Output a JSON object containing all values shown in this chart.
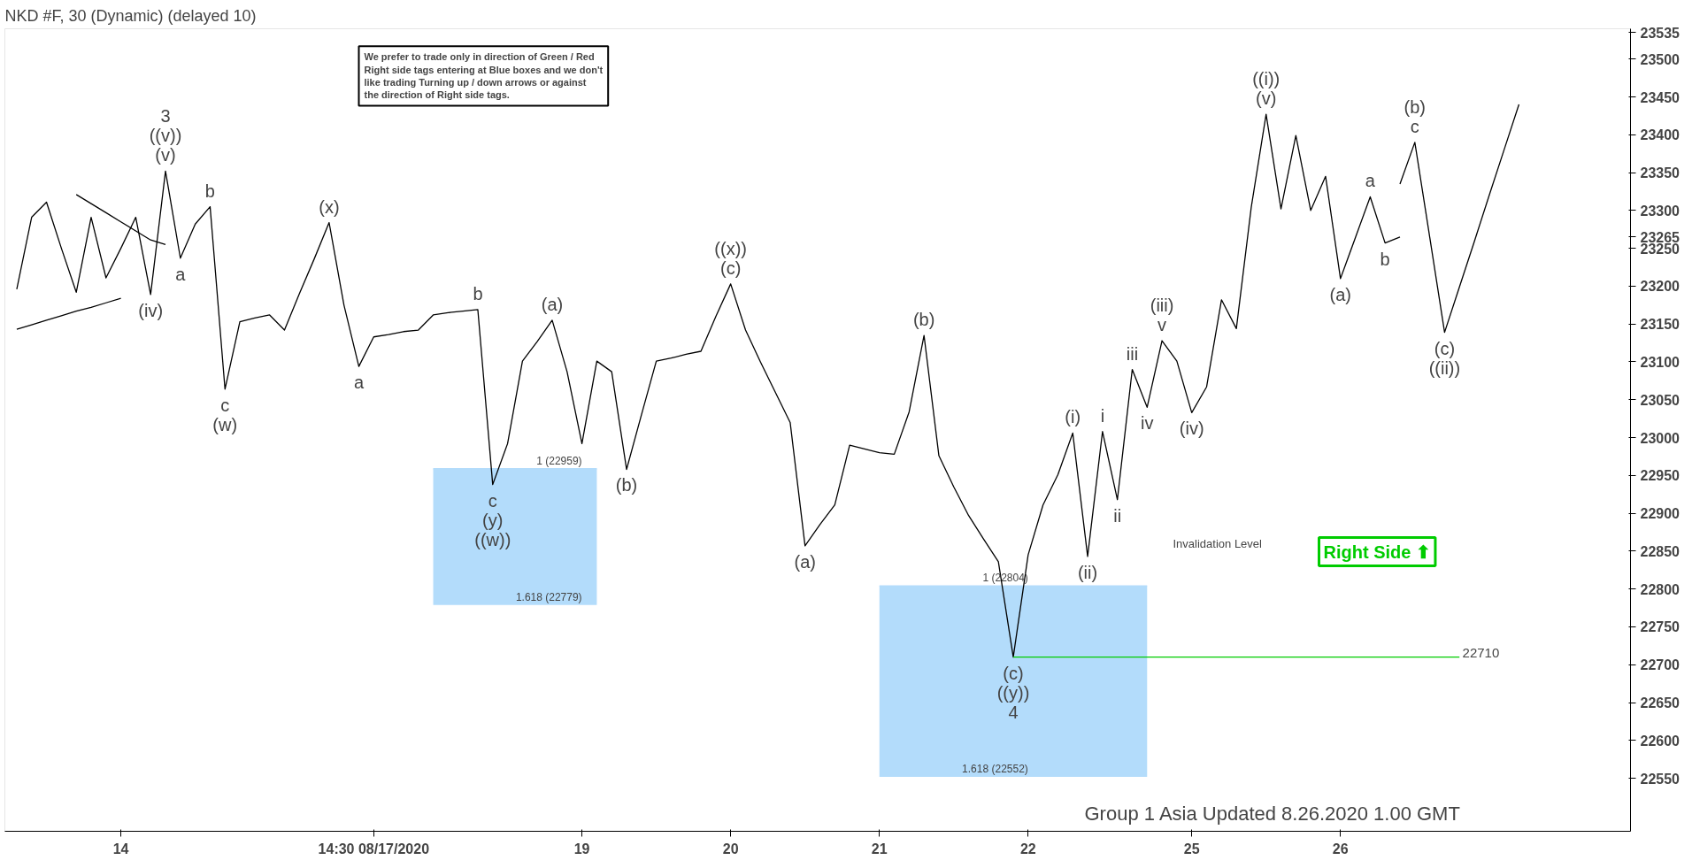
{
  "chart_data": {
    "type": "line",
    "title": "NKD #F, 30 (Dynamic) (delayed 10)",
    "categories": [
      null,
      null,
      null,
      null,
      null,
      null,
      null,
      "14",
      null,
      null,
      null,
      null,
      null,
      null,
      null,
      null,
      null,
      null,
      null,
      null,
      null,
      null,
      null,
      null,
      "14:30 08/17/2020",
      null,
      null,
      null,
      null,
      null,
      null,
      null,
      null,
      null,
      null,
      null,
      null,
      null,
      "19",
      null,
      null,
      null,
      null,
      null,
      null,
      null,
      null,
      null,
      "20",
      null,
      null,
      null,
      null,
      null,
      null,
      null,
      null,
      null,
      "21",
      null,
      null,
      null,
      null,
      null,
      null,
      null,
      null,
      null,
      "22",
      null,
      null,
      null,
      null,
      null,
      null,
      null,
      null,
      null,
      null,
      "25",
      null,
      null,
      null,
      null,
      null,
      null,
      null,
      null,
      null,
      "26",
      null,
      null,
      null,
      null,
      null,
      null,
      null,
      null,
      null,
      null,
      null,
      null,
      null,
      null,
      null,
      null,
      null,
      null,
      null
    ],
    "ylim": [
      22480,
      23540
    ],
    "yticks": [
      22550,
      22600,
      22650,
      22700,
      22750,
      22800,
      22850,
      22900,
      22950,
      23000,
      23050,
      23100,
      23150,
      23200,
      23250,
      23265,
      23300,
      23350,
      23400,
      23450,
      23500,
      23535
    ],
    "series": [
      {
        "color": "#000000",
        "values": [
          23196,
          23291,
          23311,
          23250,
          23192,
          23291,
          23211,
          23250,
          23291,
          23189,
          23352,
          23237,
          23282,
          23305,
          23064,
          23153,
          23158,
          23162,
          23142,
          23190,
          23236,
          23284,
          23175,
          23094,
          23133,
          23136,
          23140,
          23142,
          23162,
          23165,
          23167,
          23169,
          22938,
          22992,
          23101,
          23127,
          23155,
          23087,
          22992,
          23101,
          23087,
          22958,
          23030,
          23101,
          23105,
          23110,
          23114,
          23160,
          23203,
          23142,
          23100,
          23060,
          23020,
          22857,
          22885,
          22911,
          22990,
          22985,
          22980,
          22978,
          23034,
          23135,
          22976,
          22935,
          22897,
          22866,
          22836,
          22710,
          22845,
          22911,
          22951,
          23006,
          22843,
          23008,
          22918,
          23090,
          23040,
          23128,
          23101,
          23033,
          23067,
          23182,
          23144,
          23304,
          23427,
          23302,
          23399,
          23300,
          23345,
          23210,
          23264,
          23318,
          23257,
          23265,
          null,
          null,
          null,
          null,
          null,
          null,
          null,
          null,
          null,
          null,
          null,
          null,
          null,
          null,
          null
        ]
      },
      {
        "color": "#000000",
        "values": [
          null,
          null,
          null,
          null,
          null,
          null,
          null,
          null,
          null,
          null,
          null,
          null,
          null,
          null,
          null,
          null,
          null,
          null,
          null,
          null,
          null,
          null,
          null,
          null,
          null,
          null,
          null,
          null,
          null,
          null,
          null,
          null,
          null,
          null,
          null,
          null,
          null,
          null,
          null,
          null,
          null,
          null,
          null,
          null,
          null,
          null,
          null,
          null,
          null,
          null,
          null,
          null,
          null,
          null,
          null,
          null,
          null,
          null,
          null,
          null,
          null,
          null,
          null,
          null,
          null,
          null,
          null,
          null,
          null,
          null,
          null,
          null,
          null,
          null,
          null,
          null,
          null,
          null,
          null,
          null,
          null,
          null,
          null,
          null,
          null,
          null,
          null,
          null,
          null,
          null,
          null,
          null,
          null,
          23335,
          23390,
          23265,
          23139,
          23199,
          23259,
          23320,
          23380,
          23440,
          null,
          null,
          null,
          null,
          null,
          null,
          null
        ]
      },
      {
        "color": "#000000",
        "values": [
          23143,
          23149,
          23155,
          23161,
          23167,
          23172,
          23178,
          23184,
          null,
          null,
          null,
          null,
          null,
          null,
          null,
          null,
          null,
          null,
          null,
          null,
          null,
          null,
          null,
          null,
          null,
          null,
          null,
          null,
          null,
          null,
          null,
          null,
          null,
          null,
          null,
          null,
          null,
          null,
          null,
          null,
          null,
          null,
          null,
          null,
          null,
          null,
          null,
          null,
          null,
          null,
          null,
          null,
          null,
          null,
          null,
          null,
          null,
          null,
          null,
          null,
          null,
          null,
          null,
          null,
          null,
          null,
          null,
          null,
          null,
          null,
          null,
          null,
          null,
          null,
          null,
          null,
          null,
          null,
          null,
          null,
          null,
          null,
          null,
          null,
          null,
          null,
          null,
          null,
          null,
          null,
          null,
          null,
          null,
          null,
          null,
          null,
          null,
          null,
          null,
          null,
          null,
          null,
          null,
          null,
          null,
          null,
          null,
          null,
          null
        ]
      },
      {
        "color": "#000000",
        "values": [
          null,
          null,
          null,
          null,
          23321,
          23309,
          23297,
          23285,
          23273,
          23261,
          23255,
          null,
          null,
          null,
          null,
          null,
          null,
          null,
          null,
          null,
          null,
          null,
          null,
          null,
          null,
          null,
          null,
          null,
          null,
          null,
          null,
          null,
          null,
          null,
          null,
          null,
          null,
          null,
          null,
          null,
          null,
          null,
          null,
          null,
          null,
          null,
          null,
          null,
          null,
          null,
          null,
          null,
          null,
          null,
          null,
          null,
          null,
          null,
          null,
          null,
          null,
          null,
          null,
          null,
          null,
          null,
          null,
          null,
          null,
          null,
          null,
          null,
          null,
          null,
          null,
          null,
          null,
          null,
          null,
          null,
          null,
          null,
          null,
          null,
          null,
          null,
          null,
          null,
          null,
          null,
          null,
          null,
          null,
          null,
          null,
          null,
          null,
          null,
          null,
          null,
          null,
          null,
          null,
          null,
          null,
          null,
          null,
          null,
          null
        ]
      },
      {
        "color": "#b3dcfb",
        "upper": [
          null,
          null,
          null,
          null,
          null,
          null,
          null,
          null,
          null,
          null,
          null,
          null,
          null,
          null,
          null,
          null,
          null,
          null,
          null,
          null,
          null,
          null,
          null,
          null,
          null,
          null,
          null,
          null,
          22959,
          22959,
          22959,
          22959,
          22959,
          22959,
          22959,
          22959,
          22959,
          22959,
          22959,
          22959,
          null,
          null,
          null,
          null,
          null,
          null,
          null,
          null,
          null,
          null,
          null,
          null,
          null,
          null,
          null,
          null,
          null,
          null,
          null,
          null,
          null,
          null,
          null,
          null,
          null,
          null,
          null,
          null,
          null,
          null,
          null,
          null,
          null,
          null,
          null,
          null,
          null,
          null,
          null,
          null,
          null,
          null,
          null,
          null,
          null,
          null,
          null,
          null,
          null,
          null,
          null,
          null,
          null,
          null,
          null,
          null,
          null,
          null,
          null,
          null,
          null,
          null,
          null,
          null,
          null,
          null,
          null,
          null,
          null
        ],
        "values": [
          null,
          null,
          null,
          null,
          null,
          null,
          null,
          null,
          null,
          null,
          null,
          null,
          null,
          null,
          null,
          null,
          null,
          null,
          null,
          null,
          null,
          null,
          null,
          null,
          null,
          null,
          null,
          null,
          22959,
          22959,
          22959,
          22959,
          22959,
          22959,
          22959,
          22959,
          22959,
          22959,
          22959,
          22959,
          null,
          null,
          null,
          null,
          null,
          null,
          null,
          null,
          null,
          null,
          null,
          null,
          null,
          null,
          null,
          null,
          null,
          null,
          null,
          null,
          null,
          null,
          null,
          null,
          null,
          null,
          null,
          null,
          null,
          null,
          null,
          null,
          null,
          null,
          null,
          null,
          null,
          null,
          null,
          null,
          null,
          null,
          null,
          null,
          null,
          null,
          null,
          null,
          null,
          null,
          null,
          null,
          null,
          null,
          null,
          null,
          null,
          null,
          null,
          null,
          null,
          null,
          null,
          null,
          null,
          null,
          null,
          null,
          null
        ],
        "lower": [
          null,
          null,
          null,
          null,
          null,
          null,
          null,
          null,
          null,
          null,
          null,
          null,
          null,
          null,
          null,
          null,
          null,
          null,
          null,
          null,
          null,
          null,
          null,
          null,
          null,
          null,
          null,
          null,
          22779,
          22779,
          22779,
          22779,
          22779,
          22779,
          22779,
          22779,
          22779,
          22779,
          22779,
          22779,
          null,
          null,
          null,
          null,
          null,
          null,
          null,
          null,
          null,
          null,
          null,
          null,
          null,
          null,
          null,
          null,
          null,
          null,
          null,
          null,
          null,
          null,
          null,
          null,
          null,
          null,
          null,
          null,
          null,
          null,
          null,
          null,
          null,
          null,
          null,
          null,
          null,
          null,
          null,
          null,
          null,
          null,
          null,
          null,
          null,
          null,
          null,
          null,
          null,
          null,
          null,
          null,
          null,
          null,
          null,
          null,
          null,
          null,
          null,
          null,
          null,
          null,
          null,
          null,
          null,
          null,
          null,
          null,
          null
        ]
      },
      {
        "color": "#b3dcfb",
        "upper": [
          null,
          null,
          null,
          null,
          null,
          null,
          null,
          null,
          null,
          null,
          null,
          null,
          null,
          null,
          null,
          null,
          null,
          null,
          null,
          null,
          null,
          null,
          null,
          null,
          null,
          null,
          null,
          null,
          null,
          null,
          null,
          null,
          null,
          null,
          null,
          null,
          null,
          null,
          null,
          null,
          null,
          null,
          null,
          null,
          null,
          null,
          null,
          null,
          null,
          null,
          null,
          null,
          null,
          null,
          null,
          null,
          null,
          null,
          22804,
          22804,
          22804,
          22804,
          22804,
          22804,
          22804,
          22804,
          22804,
          22804,
          22804,
          22804,
          22804,
          22804,
          22804,
          22804,
          22804,
          22804,
          22804,
          null,
          null,
          null,
          null,
          null,
          null,
          null,
          null,
          null,
          null,
          null,
          null,
          null,
          null,
          null,
          null,
          null,
          null,
          null,
          null,
          null,
          null,
          null,
          null,
          null,
          null,
          null,
          null,
          null,
          null,
          null,
          null
        ],
        "values": [
          null,
          null,
          null,
          null,
          null,
          null,
          null,
          null,
          null,
          null,
          null,
          null,
          null,
          null,
          null,
          null,
          null,
          null,
          null,
          null,
          null,
          null,
          null,
          null,
          null,
          null,
          null,
          null,
          null,
          null,
          null,
          null,
          null,
          null,
          null,
          null,
          null,
          null,
          null,
          null,
          null,
          null,
          null,
          null,
          null,
          null,
          null,
          null,
          null,
          null,
          null,
          null,
          null,
          null,
          null,
          null,
          null,
          null,
          22804,
          22804,
          22804,
          22804,
          22804,
          22804,
          22804,
          22804,
          22804,
          22804,
          22804,
          22804,
          22804,
          22804,
          22804,
          22804,
          22804,
          22804,
          22804,
          null,
          null,
          null,
          null,
          null,
          null,
          null,
          null,
          null,
          null,
          null,
          null,
          null,
          null,
          null,
          null,
          null,
          null,
          null,
          null,
          null,
          null,
          null,
          null,
          null,
          null,
          null,
          null,
          null,
          null,
          null,
          null
        ],
        "lower": [
          null,
          null,
          null,
          null,
          null,
          null,
          null,
          null,
          null,
          null,
          null,
          null,
          null,
          null,
          null,
          null,
          null,
          null,
          null,
          null,
          null,
          null,
          null,
          null,
          null,
          null,
          null,
          null,
          null,
          null,
          null,
          null,
          null,
          null,
          null,
          null,
          null,
          null,
          null,
          null,
          null,
          null,
          null,
          null,
          null,
          null,
          null,
          null,
          null,
          null,
          null,
          null,
          null,
          null,
          null,
          null,
          null,
          null,
          22552,
          22552,
          22552,
          22552,
          22552,
          22552,
          22552,
          22552,
          22552,
          22552,
          22552,
          22552,
          22552,
          22552,
          22552,
          22552,
          22552,
          22552,
          22552,
          null,
          null,
          null,
          null,
          null,
          null,
          null,
          null,
          null,
          null,
          null,
          null,
          null,
          null,
          null,
          null,
          null,
          null,
          null,
          null,
          null,
          null,
          null,
          null,
          null,
          null,
          null,
          null,
          null,
          null,
          null,
          null
        ]
      }
    ],
    "ref_lines": [
      {
        "axis": "y",
        "value": 22710,
        "label": "22710",
        "color": "#00cc00"
      }
    ],
    "annotations": [
      "We prefer to trade only in direction of Green / Red\nRight side tags entering at Blue boxes and we don't\nlike trading Turning up / down arrows or against\nthe direction of Right side tags.",
      "Group 1 Asia Updated 8.26.2020 1.00 GMT",
      "Invalidation Level",
      "Right Side ⬆",
      {
        "text": "3",
        "y": 23352
      },
      {
        "text": "((v))",
        "y": 23352
      },
      {
        "text": "(v)",
        "y": 23352
      },
      {
        "text": "b",
        "y": 23305
      },
      {
        "text": "a",
        "y": 23237
      },
      {
        "text": "(iv)",
        "y": 23189
      },
      {
        "text": "c",
        "y": 23064
      },
      {
        "text": "(w)",
        "y": 23064
      },
      {
        "text": "(x)",
        "y": 23284
      },
      {
        "text": "a",
        "y": 23094
      },
      {
        "text": "b",
        "y": 23169
      },
      {
        "text": "c",
        "y": 22938
      },
      {
        "text": "(y)",
        "y": 22938
      },
      {
        "text": "((w))",
        "y": 22938
      },
      {
        "text": "(a)",
        "y": 23155
      },
      {
        "text": "(b)",
        "y": 22958
      },
      {
        "text": "((x))",
        "y": 23203
      },
      {
        "text": "(c)",
        "y": 23203
      },
      {
        "text": "(a)",
        "y": 22857
      },
      {
        "text": "(b)",
        "y": 23135
      },
      {
        "text": "(c)",
        "y": 22710
      },
      {
        "text": "((y))",
        "y": 22710
      },
      {
        "text": "4",
        "y": 22710
      },
      {
        "text": "(i)",
        "y": 23006
      },
      {
        "text": "(ii)",
        "y": 22843
      },
      {
        "text": "i",
        "y": 23008
      },
      {
        "text": "ii",
        "y": 22918
      },
      {
        "text": "iii",
        "y": 23090
      },
      {
        "text": "iv",
        "y": 23040
      },
      {
        "text": "(iii)",
        "y": 23128
      },
      {
        "text": "v",
        "y": 23128
      },
      {
        "text": "(iv)",
        "y": 23033
      },
      {
        "text": "((i))",
        "y": 23427
      },
      {
        "text": "(v)",
        "y": 23427
      },
      {
        "text": "(a)",
        "y": 23210
      },
      {
        "text": "a",
        "y": 23318
      },
      {
        "text": "b",
        "y": 23257
      },
      {
        "text": "(b)",
        "y": 23390
      },
      {
        "text": "c",
        "y": 23390
      },
      {
        "text": "(c)",
        "y": 23139
      },
      {
        "text": "((ii))",
        "y": 23139
      },
      {
        "text": "1 (22959)",
        "x": "19",
        "y": 22959
      },
      {
        "text": "1.618 (22779)",
        "x": "19",
        "y": 22779
      },
      {
        "text": "1 (22804)",
        "x": "22",
        "y": 22804
      },
      {
        "text": "1.618 (22552)",
        "x": "22",
        "y": 22552
      }
    ]
  }
}
